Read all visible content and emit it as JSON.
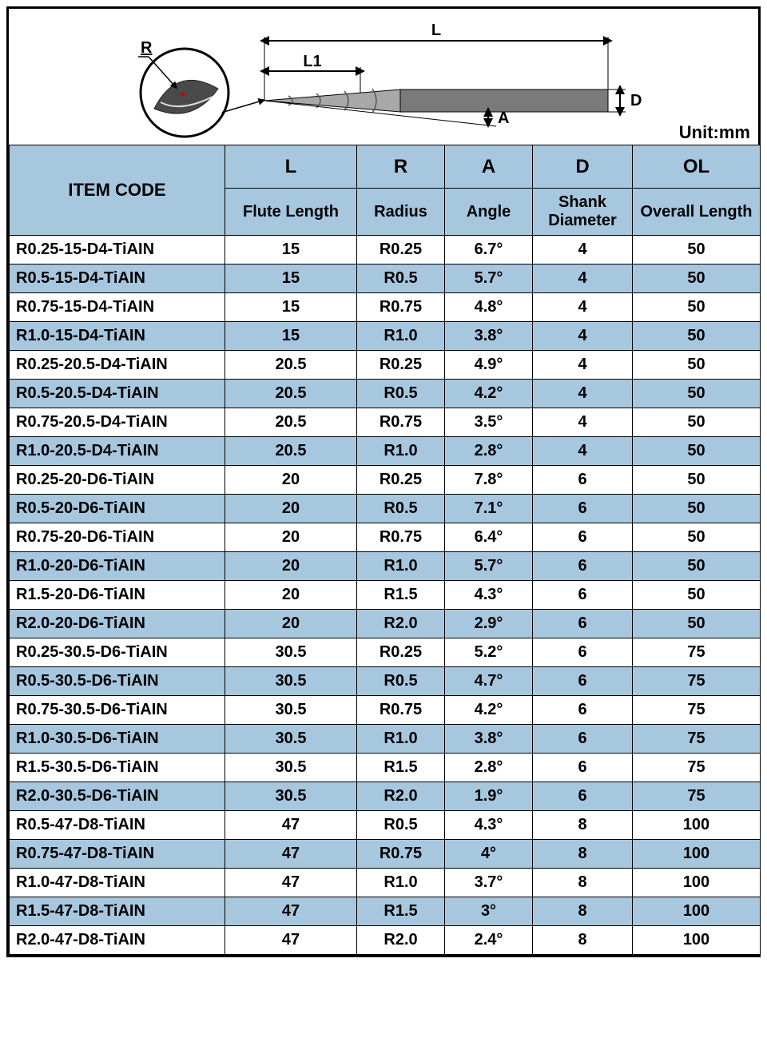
{
  "unit_label": "Unit:mm",
  "diagram": {
    "labels": {
      "L": "L",
      "L1": "L1",
      "D": "D",
      "A": "A",
      "R": "R"
    },
    "stroke": "#000000",
    "shank_fill": "#7a7a7a",
    "flute_fill": "#a8a8a8",
    "dot_color": "#d00000"
  },
  "table": {
    "header_bg": "#a7c7df",
    "row_alt_bg": "#a7c7df",
    "row_bg": "#ffffff",
    "border": "#000000",
    "item_code_label": "ITEM CODE",
    "columns": [
      {
        "key": "L",
        "sym": "L",
        "label": "Flute Length"
      },
      {
        "key": "R",
        "sym": "R",
        "label": "Radius"
      },
      {
        "key": "A",
        "sym": "A",
        "label": "Angle"
      },
      {
        "key": "D",
        "sym": "D",
        "label": "Shank Diameter"
      },
      {
        "key": "OL",
        "sym": "OL",
        "label": "Overall Length"
      }
    ],
    "rows": [
      {
        "code": "R0.25-15-D4-TiAIN",
        "L": "15",
        "R": "R0.25",
        "A": "6.7°",
        "D": "4",
        "OL": "50"
      },
      {
        "code": "R0.5-15-D4-TiAIN",
        "L": "15",
        "R": "R0.5",
        "A": "5.7°",
        "D": "4",
        "OL": "50"
      },
      {
        "code": "R0.75-15-D4-TiAIN",
        "L": "15",
        "R": "R0.75",
        "A": "4.8°",
        "D": "4",
        "OL": "50"
      },
      {
        "code": "R1.0-15-D4-TiAIN",
        "L": "15",
        "R": "R1.0",
        "A": "3.8°",
        "D": "4",
        "OL": "50"
      },
      {
        "code": "R0.25-20.5-D4-TiAIN",
        "L": "20.5",
        "R": "R0.25",
        "A": "4.9°",
        "D": "4",
        "OL": "50"
      },
      {
        "code": "R0.5-20.5-D4-TiAIN",
        "L": "20.5",
        "R": "R0.5",
        "A": "4.2°",
        "D": "4",
        "OL": "50"
      },
      {
        "code": "R0.75-20.5-D4-TiAIN",
        "L": "20.5",
        "R": "R0.75",
        "A": "3.5°",
        "D": "4",
        "OL": "50"
      },
      {
        "code": "R1.0-20.5-D4-TiAIN",
        "L": "20.5",
        "R": "R1.0",
        "A": "2.8°",
        "D": "4",
        "OL": "50"
      },
      {
        "code": "R0.25-20-D6-TiAIN",
        "L": "20",
        "R": "R0.25",
        "A": "7.8°",
        "D": "6",
        "OL": "50"
      },
      {
        "code": "R0.5-20-D6-TiAIN",
        "L": "20",
        "R": "R0.5",
        "A": "7.1°",
        "D": "6",
        "OL": "50"
      },
      {
        "code": "R0.75-20-D6-TiAIN",
        "L": "20",
        "R": "R0.75",
        "A": "6.4°",
        "D": "6",
        "OL": "50"
      },
      {
        "code": "R1.0-20-D6-TiAIN",
        "L": "20",
        "R": "R1.0",
        "A": "5.7°",
        "D": "6",
        "OL": "50"
      },
      {
        "code": "R1.5-20-D6-TiAIN",
        "L": "20",
        "R": "R1.5",
        "A": "4.3°",
        "D": "6",
        "OL": "50"
      },
      {
        "code": "R2.0-20-D6-TiAIN",
        "L": "20",
        "R": "R2.0",
        "A": "2.9°",
        "D": "6",
        "OL": "50"
      },
      {
        "code": "R0.25-30.5-D6-TiAIN",
        "L": "30.5",
        "R": "R0.25",
        "A": "5.2°",
        "D": "6",
        "OL": "75"
      },
      {
        "code": "R0.5-30.5-D6-TiAIN",
        "L": "30.5",
        "R": "R0.5",
        "A": "4.7°",
        "D": "6",
        "OL": "75"
      },
      {
        "code": "R0.75-30.5-D6-TiAIN",
        "L": "30.5",
        "R": "R0.75",
        "A": "4.2°",
        "D": "6",
        "OL": "75"
      },
      {
        "code": "R1.0-30.5-D6-TiAIN",
        "L": "30.5",
        "R": "R1.0",
        "A": "3.8°",
        "D": "6",
        "OL": "75"
      },
      {
        "code": "R1.5-30.5-D6-TiAIN",
        "L": "30.5",
        "R": "R1.5",
        "A": "2.8°",
        "D": "6",
        "OL": "75"
      },
      {
        "code": "R2.0-30.5-D6-TiAIN",
        "L": "30.5",
        "R": "R2.0",
        "A": "1.9°",
        "D": "6",
        "OL": "75"
      },
      {
        "code": "R0.5-47-D8-TiAIN",
        "L": "47",
        "R": "R0.5",
        "A": "4.3°",
        "D": "8",
        "OL": "100"
      },
      {
        "code": "R0.75-47-D8-TiAIN",
        "L": "47",
        "R": "R0.75",
        "A": "4°",
        "D": "8",
        "OL": "100"
      },
      {
        "code": "R1.0-47-D8-TiAIN",
        "L": "47",
        "R": "R1.0",
        "A": "3.7°",
        "D": "8",
        "OL": "100"
      },
      {
        "code": "R1.5-47-D8-TiAIN",
        "L": "47",
        "R": "R1.5",
        "A": "3°",
        "D": "8",
        "OL": "100"
      },
      {
        "code": "R2.0-47-D8-TiAIN",
        "L": "47",
        "R": "R2.0",
        "A": "2.4°",
        "D": "8",
        "OL": "100"
      }
    ]
  }
}
